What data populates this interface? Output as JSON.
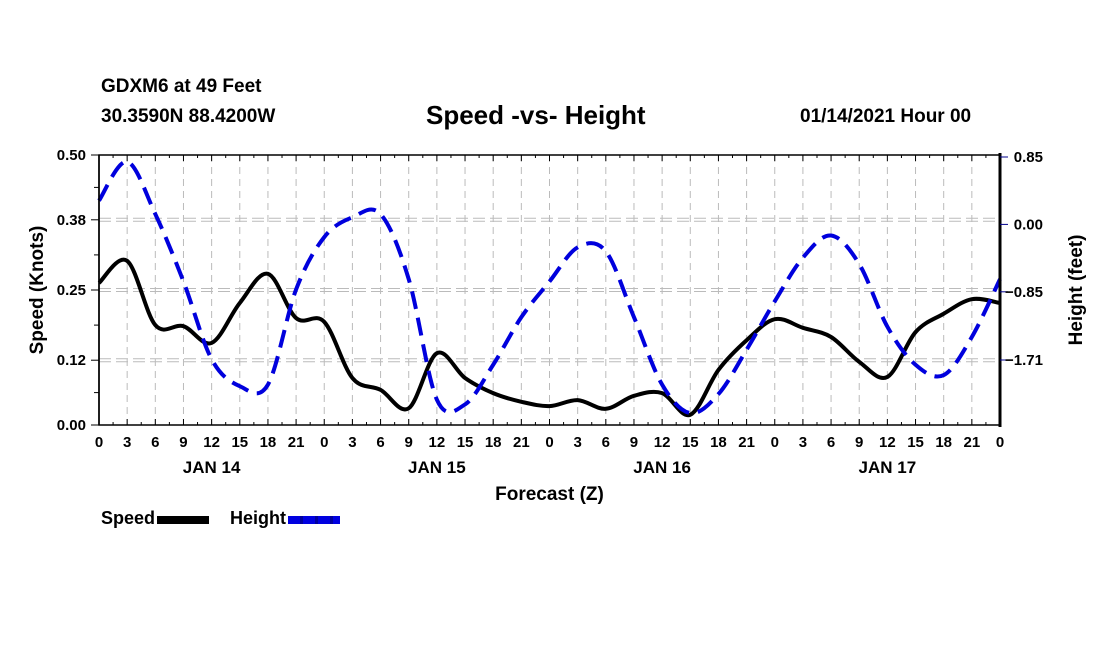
{
  "header": {
    "station": "GDXM6 at 49 Feet",
    "coordinates": "30.3590N 88.4200W",
    "title": "Speed -vs- Height",
    "datetime": "01/14/2021 Hour 00"
  },
  "legend": {
    "speed_label": "Speed",
    "height_label": "Height"
  },
  "colors": {
    "speed": "#000000",
    "height": "#0000dd",
    "grid": "#bbbbbb"
  },
  "chart_data": {
    "type": "line",
    "title": "Speed -vs- Height",
    "xlabel": "Forecast (Z)",
    "ylabel": "Speed (Knots)",
    "y2label": "Height (feet)",
    "x_unit": "forecast hours from 01/14/2021 00Z",
    "xlim": [
      0,
      96
    ],
    "ylim": [
      0,
      0.5
    ],
    "y2lim": [
      -2.56,
      0.85
    ],
    "x_ticks": [
      0,
      3,
      6,
      9,
      12,
      15,
      18,
      21,
      24,
      27,
      30,
      33,
      36,
      39,
      42,
      45,
      48,
      51,
      54,
      57,
      60,
      63,
      66,
      69,
      72,
      75,
      78,
      81,
      84,
      87,
      90,
      93,
      96
    ],
    "x_tick_labels": [
      "0",
      "3",
      "6",
      "9",
      "12",
      "15",
      "18",
      "21",
      "0",
      "3",
      "6",
      "9",
      "12",
      "15",
      "18",
      "21",
      "0",
      "3",
      "6",
      "9",
      "12",
      "15",
      "18",
      "21",
      "0",
      "3",
      "6",
      "9",
      "12",
      "15",
      "18",
      "21",
      "0"
    ],
    "day_labels": [
      {
        "label": "JAN 14",
        "center_hour": 12
      },
      {
        "label": "JAN 15",
        "center_hour": 36
      },
      {
        "label": "JAN 16",
        "center_hour": 60
      },
      {
        "label": "JAN 17",
        "center_hour": 84
      }
    ],
    "y_ticks": [
      0.0,
      0.12,
      0.25,
      0.38,
      0.5
    ],
    "y_tick_labels": [
      "0.00",
      "0.12",
      "0.25",
      "0.38",
      "0.50"
    ],
    "y2_ticks": [
      -1.71,
      -0.85,
      0.0,
      0.85
    ],
    "y2_tick_labels": [
      "-1.71",
      "-0.85",
      "0.00",
      "0.85"
    ],
    "grid": true,
    "legend_position": "bottom-left",
    "x": [
      0,
      3,
      6,
      9,
      12,
      15,
      18,
      21,
      24,
      27,
      30,
      33,
      36,
      39,
      42,
      45,
      48,
      51,
      54,
      57,
      60,
      63,
      66,
      69,
      72,
      75,
      78,
      81,
      84,
      87,
      90,
      93,
      96
    ],
    "series": [
      {
        "name": "Speed",
        "axis": "left",
        "style": "solid",
        "values": [
          0.263,
          0.304,
          0.185,
          0.183,
          0.152,
          0.226,
          0.28,
          0.198,
          0.191,
          0.087,
          0.065,
          0.031,
          0.133,
          0.087,
          0.059,
          0.043,
          0.035,
          0.046,
          0.03,
          0.054,
          0.059,
          0.019,
          0.102,
          0.157,
          0.196,
          0.18,
          0.163,
          0.117,
          0.089,
          0.172,
          0.206,
          0.233,
          0.226
        ]
      },
      {
        "name": "Height",
        "axis": "right",
        "style": "dashed",
        "values": [
          0.3,
          0.79,
          0.13,
          -0.72,
          -1.7,
          -2.04,
          -2.02,
          -0.82,
          -0.16,
          0.09,
          0.13,
          -0.69,
          -2.21,
          -2.27,
          -1.77,
          -1.17,
          -0.72,
          -0.29,
          -0.34,
          -1.17,
          -2.02,
          -2.38,
          -2.14,
          -1.58,
          -0.97,
          -0.42,
          -0.14,
          -0.5,
          -1.29,
          -1.77,
          -1.9,
          -1.42,
          -0.69
        ]
      }
    ]
  }
}
